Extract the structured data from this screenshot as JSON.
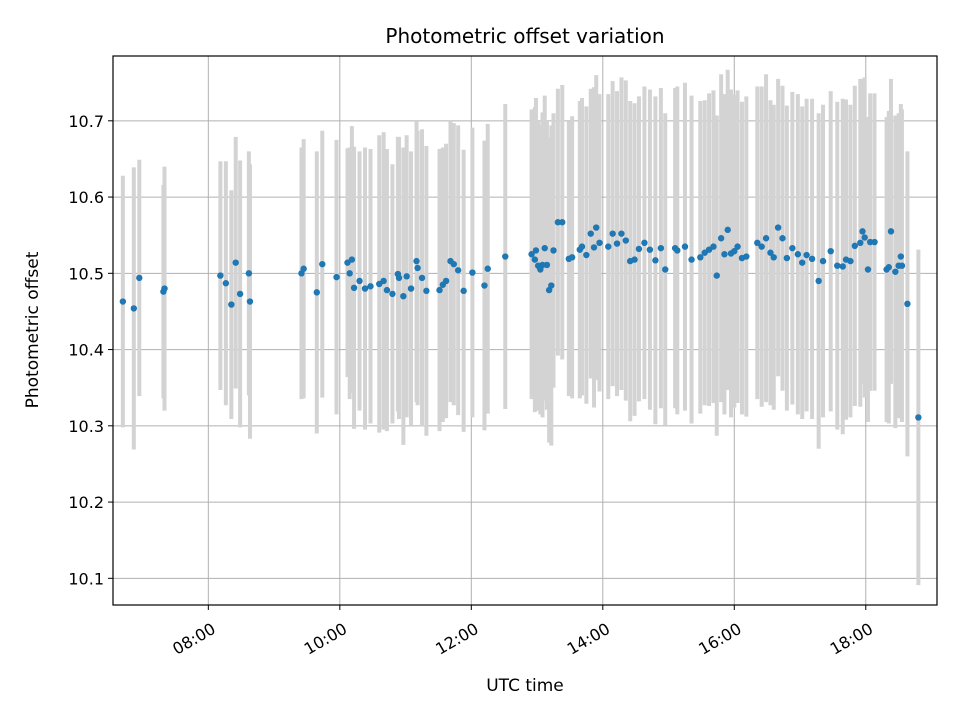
{
  "chart_data": {
    "type": "scatter",
    "title": "Photometric offset variation",
    "xlabel": "UTC time",
    "ylabel": "Photometric offset",
    "x_unit": "hours UTC",
    "xlim": [
      "06:33",
      "19:05"
    ],
    "ylim": [
      10.065,
      10.785
    ],
    "x_ticks": [
      "08:00",
      "10:00",
      "12:00",
      "14:00",
      "16:00",
      "18:00"
    ],
    "y_ticks": [
      "10.1",
      "10.2",
      "10.3",
      "10.4",
      "10.5",
      "10.6",
      "10.7"
    ],
    "grid": true,
    "colors": {
      "point": "#1f77b4",
      "errorbar": "#d3d3d3",
      "grid": "#b0b0b0"
    },
    "series": [
      {
        "x": [
          "06:42",
          "06:52",
          "06:57",
          "07:19",
          "07:20",
          "08:11",
          "08:16",
          "08:21",
          "08:25",
          "08:29",
          "08:37",
          "08:38",
          "09:25",
          "09:27",
          "09:39",
          "09:44",
          "09:57",
          "10:07",
          "10:09",
          "10:11",
          "10:13",
          "10:18",
          "10:23",
          "10:28",
          "10:36",
          "10:40",
          "10:43",
          "10:48",
          "10:53",
          "10:54",
          "10:58",
          "11:01",
          "11:05",
          "11:10",
          "11:11",
          "11:15",
          "11:19",
          "11:31",
          "11:34",
          "11:37",
          "11:41",
          "11:44",
          "11:48",
          "11:53",
          "12:01",
          "12:12",
          "12:15",
          "12:31",
          "12:55",
          "12:58",
          "12:59",
          "13:01",
          "13:03",
          "13:05",
          "13:07",
          "13:09",
          "13:11",
          "13:13",
          "13:15",
          "13:19",
          "13:23",
          "13:29",
          "13:32",
          "13:39",
          "13:41",
          "13:45",
          "13:49",
          "13:52",
          "13:54",
          "13:57",
          "14:05",
          "14:09",
          "14:13",
          "14:17",
          "14:21",
          "14:25",
          "14:29",
          "14:33",
          "14:38",
          "14:43",
          "14:48",
          "14:53",
          "14:57",
          "15:06",
          "15:08",
          "15:15",
          "15:21",
          "15:29",
          "15:33",
          "15:37",
          "15:41",
          "15:44",
          "15:48",
          "15:51",
          "15:54",
          "15:57",
          "16:00",
          "16:03",
          "16:07",
          "16:11",
          "16:21",
          "16:25",
          "16:29",
          "16:33",
          "16:36",
          "16:40",
          "16:44",
          "16:48",
          "16:53",
          "16:58",
          "17:02",
          "17:06",
          "17:11",
          "17:17",
          "17:21",
          "17:28",
          "17:34",
          "17:39",
          "17:42",
          "17:46",
          "17:50",
          "17:55",
          "17:57",
          "17:59",
          "18:02",
          "18:04",
          "18:08",
          "18:19",
          "18:21",
          "18:23",
          "18:27",
          "18:30",
          "18:32",
          "18:33",
          "18:38",
          "18:48"
        ],
        "y": [
          10.463,
          10.454,
          10.494,
          10.476,
          10.48,
          10.497,
          10.487,
          10.459,
          10.514,
          10.473,
          10.5,
          10.463,
          10.5,
          10.506,
          10.475,
          10.512,
          10.495,
          10.514,
          10.5,
          10.518,
          10.481,
          10.49,
          10.48,
          10.483,
          10.486,
          10.49,
          10.478,
          10.473,
          10.499,
          10.494,
          10.47,
          10.496,
          10.48,
          10.516,
          10.507,
          10.494,
          10.477,
          10.478,
          10.485,
          10.49,
          10.516,
          10.512,
          10.504,
          10.477,
          10.501,
          10.484,
          10.506,
          10.522,
          10.525,
          10.518,
          10.53,
          10.51,
          10.505,
          10.511,
          10.533,
          10.511,
          10.478,
          10.484,
          10.53,
          10.567,
          10.567,
          10.519,
          10.521,
          10.531,
          10.535,
          10.524,
          10.552,
          10.534,
          10.56,
          10.54,
          10.535,
          10.552,
          10.539,
          10.552,
          10.543,
          10.516,
          10.518,
          10.532,
          10.54,
          10.531,
          10.517,
          10.533,
          10.505,
          10.533,
          10.53,
          10.535,
          10.518,
          10.521,
          10.527,
          10.531,
          10.535,
          10.497,
          10.546,
          10.525,
          10.557,
          10.526,
          10.529,
          10.535,
          10.52,
          10.522,
          10.54,
          10.535,
          10.546,
          10.527,
          10.521,
          10.56,
          10.546,
          10.52,
          10.533,
          10.525,
          10.514,
          10.524,
          10.519,
          10.49,
          10.516,
          10.529,
          10.51,
          10.509,
          10.518,
          10.516,
          10.536,
          10.54,
          10.555,
          10.547,
          10.505,
          10.541,
          10.541,
          10.505,
          10.508,
          10.555,
          10.502,
          10.51,
          10.522,
          10.51,
          10.46,
          10.311
        ],
        "yerr": [
          0.165,
          0.185,
          0.155,
          0.14,
          0.16,
          0.15,
          0.16,
          0.15,
          0.165,
          0.175,
          0.16,
          0.18,
          0.165,
          0.17,
          0.185,
          0.175,
          0.18,
          0.15,
          0.165,
          0.175,
          0.185,
          0.17,
          0.185,
          0.18,
          0.195,
          0.195,
          0.185,
          0.17,
          0.18,
          0.185,
          0.195,
          0.185,
          0.18,
          0.185,
          0.18,
          0.195,
          0.19,
          0.185,
          0.18,
          0.18,
          0.185,
          0.185,
          0.19,
          0.185,
          0.19,
          0.19,
          0.19,
          0.2,
          0.19,
          0.2,
          0.2,
          0.19,
          0.19,
          0.2,
          0.2,
          0.19,
          0.2,
          0.21,
          0.18,
          0.175,
          0.18,
          0.18,
          0.185,
          0.195,
          0.195,
          0.195,
          0.19,
          0.21,
          0.2,
          0.195,
          0.2,
          0.2,
          0.2,
          0.205,
          0.21,
          0.21,
          0.205,
          0.2,
          0.205,
          0.21,
          0.215,
          0.21,
          0.205,
          0.21,
          0.215,
          0.215,
          0.215,
          0.205,
          0.2,
          0.205,
          0.205,
          0.21,
          0.215,
          0.21,
          0.21,
          0.215,
          0.205,
          0.205,
          0.205,
          0.21,
          0.205,
          0.21,
          0.215,
          0.2,
          0.2,
          0.195,
          0.2,
          0.2,
          0.205,
          0.21,
          0.205,
          0.205,
          0.21,
          0.22,
          0.205,
          0.21,
          0.215,
          0.22,
          0.21,
          0.205,
          0.21,
          0.215,
          0.2,
          0.21,
          0.2,
          0.195,
          0.195,
          0.2,
          0.205,
          0.2,
          0.205,
          0.2,
          0.2,
          0.205,
          0.2,
          0.22
        ]
      }
    ]
  }
}
